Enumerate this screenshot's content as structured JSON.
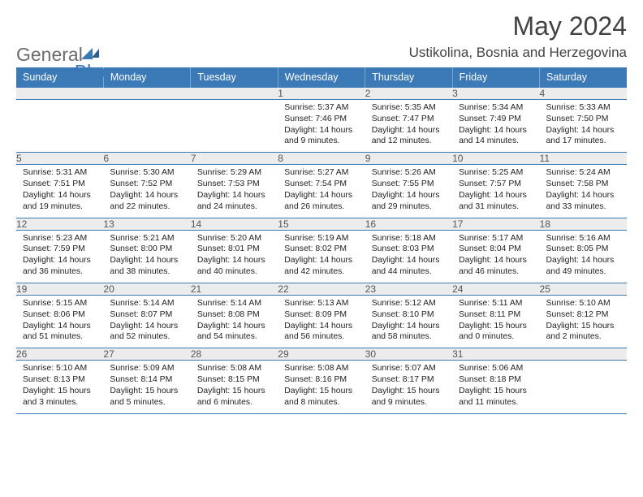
{
  "logo": {
    "general": "General",
    "blue": "Blue"
  },
  "title": "May 2024",
  "location": "Ustikolina, Bosnia and Herzegovina",
  "colors": {
    "header_bg": "#3b79b7",
    "header_text": "#ffffff",
    "daynum_bg": "#ececec",
    "text": "#222222",
    "page_bg": "#ffffff",
    "rule": "#3b79b7"
  },
  "day_names": [
    "Sunday",
    "Monday",
    "Tuesday",
    "Wednesday",
    "Thursday",
    "Friday",
    "Saturday"
  ],
  "weeks": [
    {
      "nums": [
        "",
        "",
        "",
        "1",
        "2",
        "3",
        "4"
      ],
      "cells": [
        null,
        null,
        null,
        {
          "sunrise": "5:37 AM",
          "sunset": "7:46 PM",
          "daylight": "14 hours and 9 minutes."
        },
        {
          "sunrise": "5:35 AM",
          "sunset": "7:47 PM",
          "daylight": "14 hours and 12 minutes."
        },
        {
          "sunrise": "5:34 AM",
          "sunset": "7:49 PM",
          "daylight": "14 hours and 14 minutes."
        },
        {
          "sunrise": "5:33 AM",
          "sunset": "7:50 PM",
          "daylight": "14 hours and 17 minutes."
        }
      ]
    },
    {
      "nums": [
        "5",
        "6",
        "7",
        "8",
        "9",
        "10",
        "11"
      ],
      "cells": [
        {
          "sunrise": "5:31 AM",
          "sunset": "7:51 PM",
          "daylight": "14 hours and 19 minutes."
        },
        {
          "sunrise": "5:30 AM",
          "sunset": "7:52 PM",
          "daylight": "14 hours and 22 minutes."
        },
        {
          "sunrise": "5:29 AM",
          "sunset": "7:53 PM",
          "daylight": "14 hours and 24 minutes."
        },
        {
          "sunrise": "5:27 AM",
          "sunset": "7:54 PM",
          "daylight": "14 hours and 26 minutes."
        },
        {
          "sunrise": "5:26 AM",
          "sunset": "7:55 PM",
          "daylight": "14 hours and 29 minutes."
        },
        {
          "sunrise": "5:25 AM",
          "sunset": "7:57 PM",
          "daylight": "14 hours and 31 minutes."
        },
        {
          "sunrise": "5:24 AM",
          "sunset": "7:58 PM",
          "daylight": "14 hours and 33 minutes."
        }
      ]
    },
    {
      "nums": [
        "12",
        "13",
        "14",
        "15",
        "16",
        "17",
        "18"
      ],
      "cells": [
        {
          "sunrise": "5:23 AM",
          "sunset": "7:59 PM",
          "daylight": "14 hours and 36 minutes."
        },
        {
          "sunrise": "5:21 AM",
          "sunset": "8:00 PM",
          "daylight": "14 hours and 38 minutes."
        },
        {
          "sunrise": "5:20 AM",
          "sunset": "8:01 PM",
          "daylight": "14 hours and 40 minutes."
        },
        {
          "sunrise": "5:19 AM",
          "sunset": "8:02 PM",
          "daylight": "14 hours and 42 minutes."
        },
        {
          "sunrise": "5:18 AM",
          "sunset": "8:03 PM",
          "daylight": "14 hours and 44 minutes."
        },
        {
          "sunrise": "5:17 AM",
          "sunset": "8:04 PM",
          "daylight": "14 hours and 46 minutes."
        },
        {
          "sunrise": "5:16 AM",
          "sunset": "8:05 PM",
          "daylight": "14 hours and 49 minutes."
        }
      ]
    },
    {
      "nums": [
        "19",
        "20",
        "21",
        "22",
        "23",
        "24",
        "25"
      ],
      "cells": [
        {
          "sunrise": "5:15 AM",
          "sunset": "8:06 PM",
          "daylight": "14 hours and 51 minutes."
        },
        {
          "sunrise": "5:14 AM",
          "sunset": "8:07 PM",
          "daylight": "14 hours and 52 minutes."
        },
        {
          "sunrise": "5:14 AM",
          "sunset": "8:08 PM",
          "daylight": "14 hours and 54 minutes."
        },
        {
          "sunrise": "5:13 AM",
          "sunset": "8:09 PM",
          "daylight": "14 hours and 56 minutes."
        },
        {
          "sunrise": "5:12 AM",
          "sunset": "8:10 PM",
          "daylight": "14 hours and 58 minutes."
        },
        {
          "sunrise": "5:11 AM",
          "sunset": "8:11 PM",
          "daylight": "15 hours and 0 minutes."
        },
        {
          "sunrise": "5:10 AM",
          "sunset": "8:12 PM",
          "daylight": "15 hours and 2 minutes."
        }
      ]
    },
    {
      "nums": [
        "26",
        "27",
        "28",
        "29",
        "30",
        "31",
        ""
      ],
      "cells": [
        {
          "sunrise": "5:10 AM",
          "sunset": "8:13 PM",
          "daylight": "15 hours and 3 minutes."
        },
        {
          "sunrise": "5:09 AM",
          "sunset": "8:14 PM",
          "daylight": "15 hours and 5 minutes."
        },
        {
          "sunrise": "5:08 AM",
          "sunset": "8:15 PM",
          "daylight": "15 hours and 6 minutes."
        },
        {
          "sunrise": "5:08 AM",
          "sunset": "8:16 PM",
          "daylight": "15 hours and 8 minutes."
        },
        {
          "sunrise": "5:07 AM",
          "sunset": "8:17 PM",
          "daylight": "15 hours and 9 minutes."
        },
        {
          "sunrise": "5:06 AM",
          "sunset": "8:18 PM",
          "daylight": "15 hours and 11 minutes."
        },
        null
      ]
    }
  ],
  "labels": {
    "sunrise": "Sunrise:",
    "sunset": "Sunset:",
    "daylight": "Daylight:"
  }
}
